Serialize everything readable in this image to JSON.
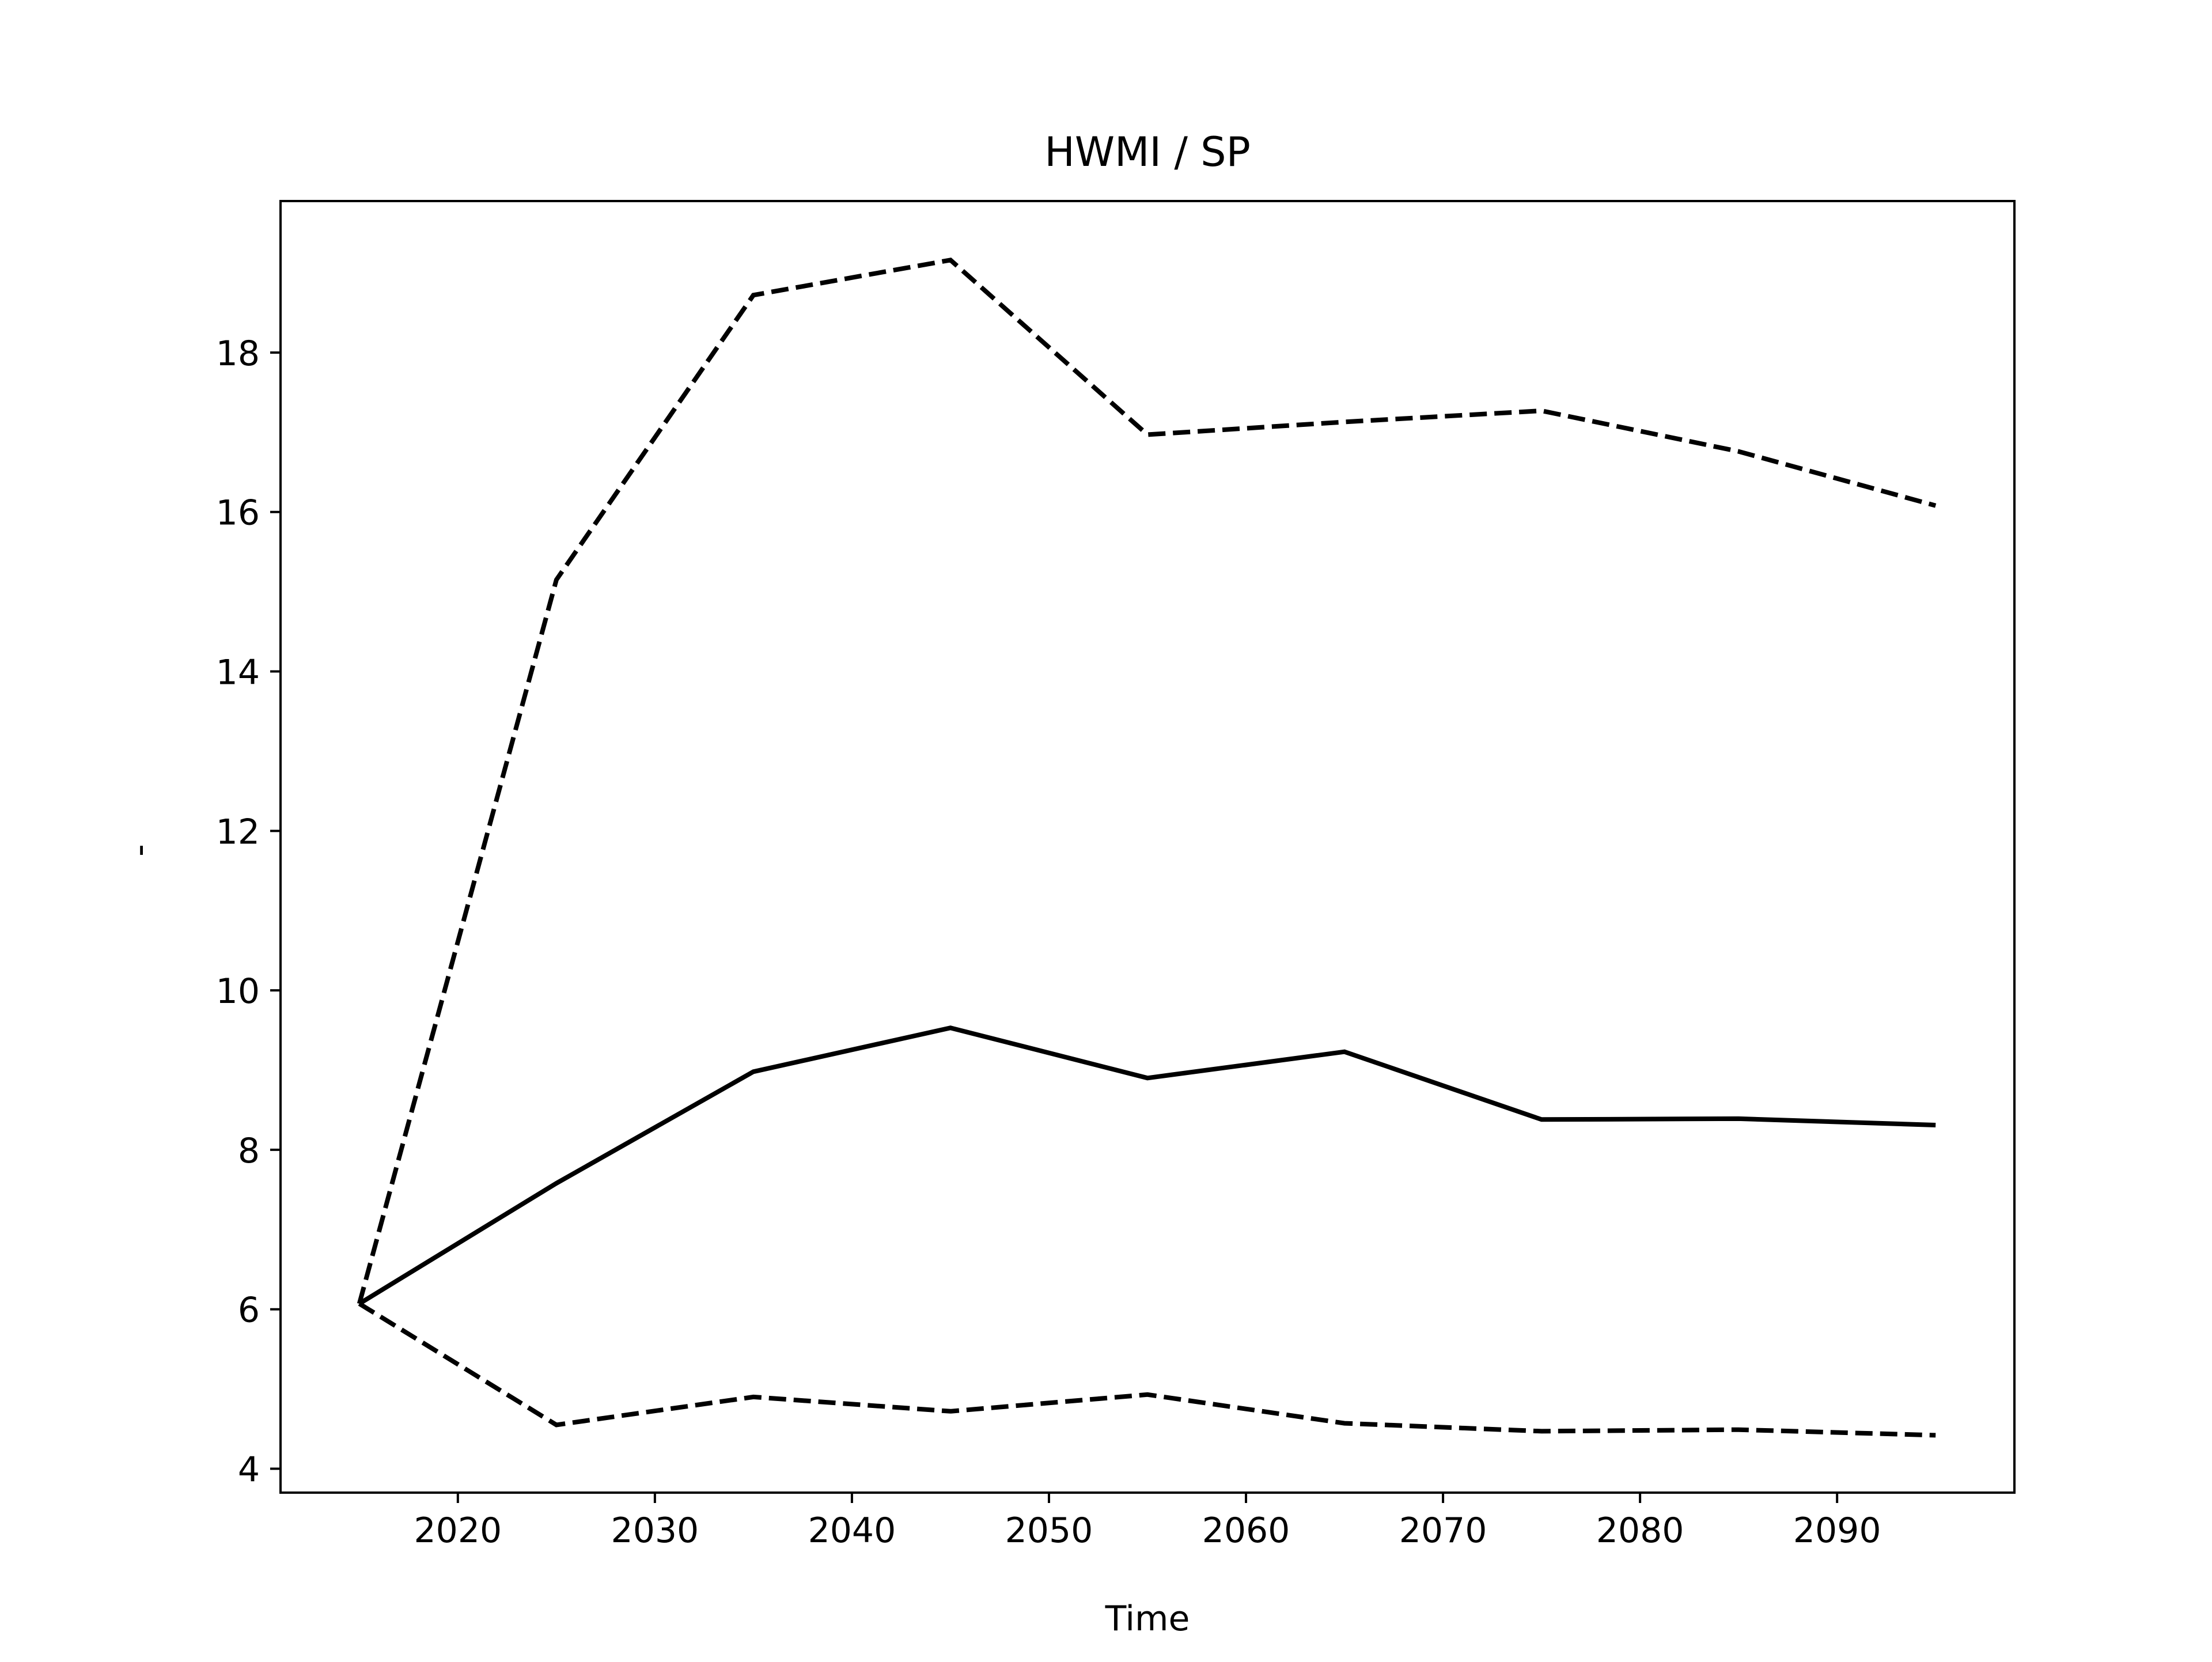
{
  "chart_data": {
    "type": "line",
    "title": "HWMI / SP",
    "xlabel": "Time",
    "ylabel": "-",
    "xlim": [
      2011,
      2099
    ],
    "ylim": [
      3.7,
      19.9
    ],
    "x_ticks": [
      2020,
      2030,
      2040,
      2050,
      2060,
      2070,
      2080,
      2090
    ],
    "y_ticks": [
      4,
      6,
      8,
      10,
      12,
      14,
      16,
      18
    ],
    "grid": false,
    "legend": "none",
    "x": [
      2015,
      2025,
      2035,
      2045,
      2055,
      2065,
      2075,
      2085,
      2095
    ],
    "series": [
      {
        "style": "solid",
        "color": "#000000",
        "values": [
          6.07,
          7.58,
          8.98,
          9.53,
          8.9,
          9.23,
          8.38,
          8.39,
          8.31
        ]
      },
      {
        "style": "dashed",
        "color": "#000000",
        "values": [
          6.07,
          15.15,
          18.72,
          19.16,
          16.97,
          17.13,
          17.27,
          16.76,
          16.08
        ]
      },
      {
        "style": "dashed",
        "color": "#000000",
        "values": [
          6.07,
          4.55,
          4.9,
          4.72,
          4.93,
          4.57,
          4.47,
          4.49,
          4.42
        ]
      }
    ]
  }
}
